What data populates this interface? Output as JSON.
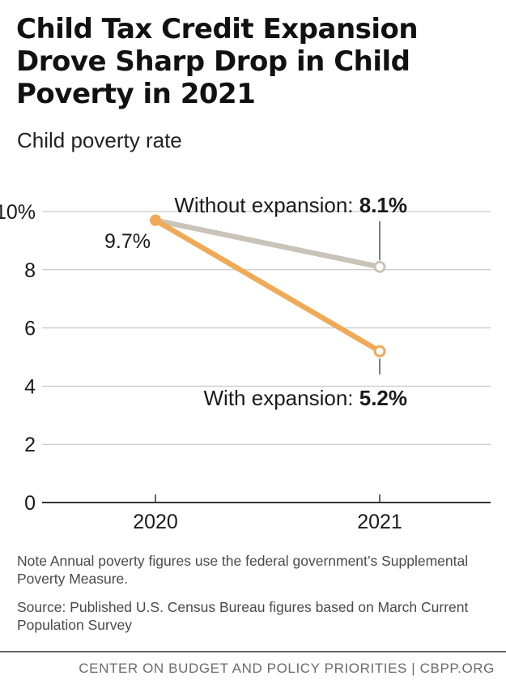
{
  "title": "Child Tax Credit Expansion Drove Sharp Drop in Child Poverty in 2021",
  "subtitle": "Child poverty rate",
  "notes": {
    "note": "Note Annual poverty figures use the federal government’s Supplemental Poverty Measure.",
    "source": "Source: Published U.S. Census Bureau figures based on March Current Population Survey"
  },
  "footer": "CENTER ON BUDGET AND POLICY PRIORITIES | CBPP.ORG",
  "colors": {
    "with_expansion": "#F0A957",
    "without_expansion": "#C9C3B8",
    "grid": "#BDBDBD",
    "axis": "#333333"
  },
  "chart_data": {
    "type": "line",
    "x": [
      "2020",
      "2021"
    ],
    "ylim": [
      0,
      10
    ],
    "yticks": [
      0,
      2,
      4,
      6,
      8,
      10
    ],
    "ytick_labels": [
      "0",
      "2",
      "4",
      "6",
      "8",
      "10%"
    ],
    "grid": true,
    "series": [
      {
        "name": "Without expansion",
        "values": [
          9.7,
          8.1
        ],
        "label_text": "Without expansion: ",
        "label_value": "8.1%"
      },
      {
        "name": "With expansion",
        "values": [
          9.7,
          5.2
        ],
        "label_text": "With expansion: ",
        "label_value": "5.2%"
      }
    ],
    "start_label": "9.7%"
  }
}
